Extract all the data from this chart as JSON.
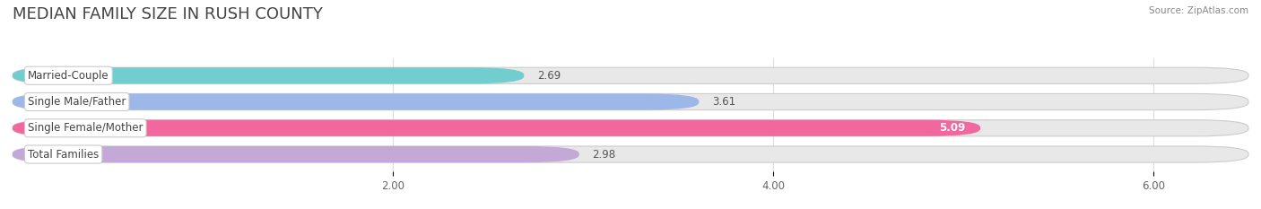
{
  "title": "MEDIAN FAMILY SIZE IN RUSH COUNTY",
  "source": "Source: ZipAtlas.com",
  "categories": [
    "Married-Couple",
    "Single Male/Father",
    "Single Female/Mother",
    "Total Families"
  ],
  "values": [
    2.69,
    3.61,
    5.09,
    2.98
  ],
  "bar_colors": [
    "#72cece",
    "#9db8e8",
    "#f0689e",
    "#c3a8d8"
  ],
  "value_on_bar": [
    false,
    false,
    true,
    false
  ],
  "xlim": [
    0,
    6.5
  ],
  "xmin": 0,
  "xticks": [
    2.0,
    4.0,
    6.0
  ],
  "xtick_labels": [
    "2.00",
    "4.00",
    "6.00"
  ],
  "background_color": "#ffffff",
  "bar_bg_color": "#e8e8e8",
  "bar_bg_border_color": "#d8d8d8",
  "label_fontsize": 8.5,
  "value_fontsize": 8.5,
  "title_fontsize": 13,
  "bar_height": 0.62,
  "bar_spacing": 1.0
}
